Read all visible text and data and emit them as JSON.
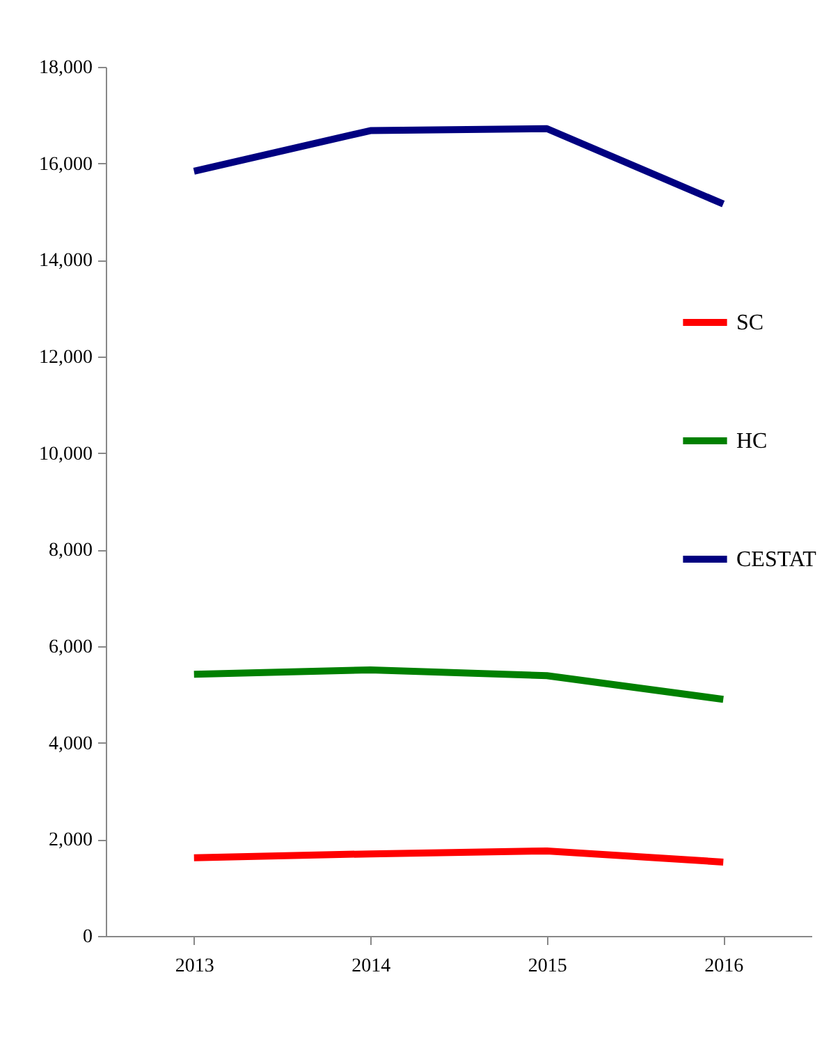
{
  "chart_data": {
    "type": "line",
    "categories": [
      "2013",
      "2014",
      "2015",
      "2016"
    ],
    "series": [
      {
        "name": "SC",
        "color": "#ff0000",
        "values": [
          1620,
          1700,
          1760,
          1530
        ]
      },
      {
        "name": "HC",
        "color": "#008000",
        "values": [
          5420,
          5510,
          5390,
          4900
        ]
      },
      {
        "name": "CESTAT",
        "color": "#000080",
        "values": [
          15840,
          16680,
          16720,
          15160
        ]
      }
    ],
    "ylim": [
      0,
      18000
    ],
    "yticks": [
      {
        "value": 0,
        "label": "0"
      },
      {
        "value": 2000,
        "label": "2,000"
      },
      {
        "value": 4000,
        "label": "4,000"
      },
      {
        "value": 6000,
        "label": "6,000"
      },
      {
        "value": 8000,
        "label": "8,000"
      },
      {
        "value": 10000,
        "label": "10,000"
      },
      {
        "value": 12000,
        "label": "12,000"
      },
      {
        "value": 14000,
        "label": "14,000"
      },
      {
        "value": 16000,
        "label": "16,000"
      },
      {
        "value": 18000,
        "label": "18,000"
      }
    ],
    "legend": "right",
    "grid": false,
    "marker": "none",
    "line_style": "solid"
  }
}
